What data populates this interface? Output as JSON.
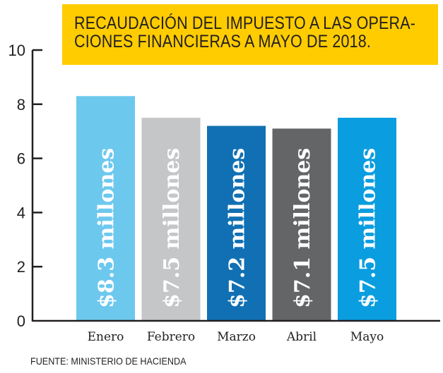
{
  "title": {
    "lines": [
      "RECAUDACIÓN DEL IMPUESTO A LAS OPERA-",
      "CIONES FINANCIERAS A MAYO DE 2018."
    ],
    "background": "#FFCC00"
  },
  "source": "FUENTE: MINISTERIO DE HACIENDA",
  "chart_data": {
    "type": "bar",
    "title": "RECAUDACIÓN DEL IMPUESTO A LAS OPERACIONES FINANCIERAS A MAYO DE 2018.",
    "xlabel": "",
    "ylabel": "",
    "categories": [
      "Enero",
      "Febrero",
      "Marzo",
      "Abril",
      "Mayo"
    ],
    "values": [
      8.3,
      7.5,
      7.2,
      7.1,
      7.5
    ],
    "data_labels": [
      "$8.3 millones",
      "$7.5 millones",
      "$7.2 millones",
      "$7.1 millones",
      "$7.5 millones"
    ],
    "colors": [
      "#6DC8EE",
      "#C5C6C8",
      "#1170B3",
      "#646567",
      "#0A9DDF"
    ],
    "ylim": [
      0,
      10
    ],
    "yticks": [
      0,
      2,
      4,
      6,
      8,
      10
    ],
    "grid": false,
    "legend": "none",
    "source": "FUENTE: MINISTERIO DE HACIENDA"
  }
}
